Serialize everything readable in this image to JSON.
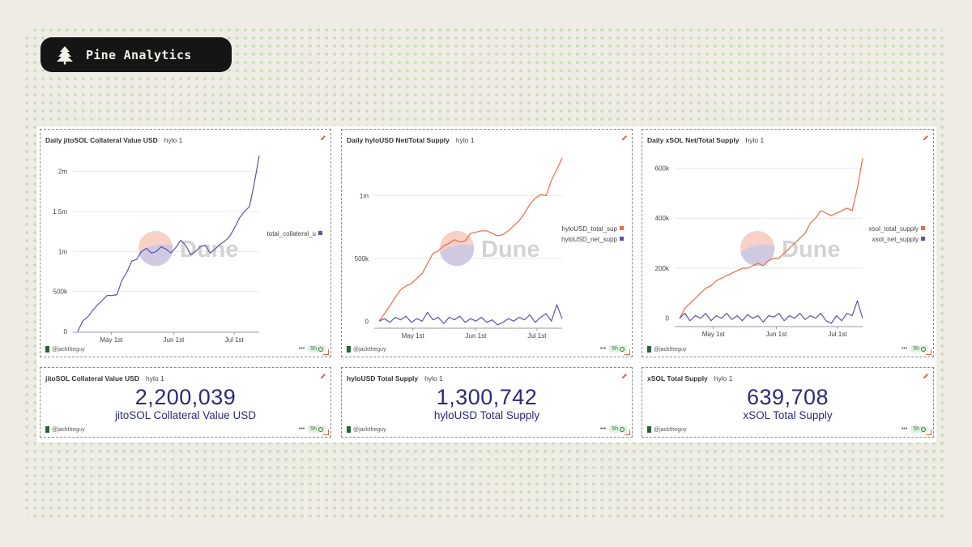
{
  "brand": {
    "name": "Pine Analytics",
    "colors": {
      "orange": "#f06a44",
      "purple": "#5755a8"
    }
  },
  "watermark": "Dune",
  "charts": [
    {
      "title": "Daily jitoSOL Collateral Value USD",
      "subtitle": "hylo 1",
      "user": "@jacktheguy",
      "age": "5h",
      "legend": [
        "total_collateral_u"
      ]
    },
    {
      "title": "Daily hyloUSD Net/Total Supply",
      "subtitle": "hylo 1",
      "user": "@jacktheguy",
      "age": "5h",
      "legend": [
        "hyloUSD_total_sup",
        "hyloUSD_net_supp"
      ]
    },
    {
      "title": "Daily xSOL Net/Total Supply",
      "subtitle": "hylo 1",
      "user": "@jacktheguy",
      "age": "5h",
      "legend": [
        "xsol_total_supply",
        "xsol_net_supply"
      ]
    }
  ],
  "counters": [
    {
      "title": "jitoSOL Collateral Value USD",
      "subtitle": "hylo 1",
      "value": "2,200,039",
      "label": "jitoSOL Collateral Value USD",
      "user": "@jacktheguy",
      "age": "5h"
    },
    {
      "title": "hyloUSD Total Supply",
      "subtitle": "hylo 1",
      "value": "1,300,742",
      "label": "hyloUSD Total Supply",
      "user": "@jacktheguy",
      "age": "5h"
    },
    {
      "title": "xSOL Total Supply",
      "subtitle": "hylo 1",
      "value": "639,708",
      "label": "xSOL Total Supply",
      "user": "@jacktheguy",
      "age": "5h"
    }
  ],
  "chart_data": [
    {
      "type": "line",
      "x_tick_labels": [
        "May 1st",
        "Jun 1st",
        "Jul 1st"
      ],
      "y_tick_labels": [
        "0",
        "500k",
        "1m",
        "1.5m",
        "2m"
      ],
      "y_ticks": [
        0,
        500000,
        1000000,
        1500000,
        2000000
      ],
      "ylim": [
        0,
        2200000
      ],
      "legend_position": "right",
      "series": [
        {
          "name": "total_collateral_u",
          "color": "#5755a8",
          "values": [
            0,
            130000,
            180000,
            260000,
            330000,
            390000,
            450000,
            450000,
            460000,
            640000,
            740000,
            880000,
            900000,
            1000000,
            1040000,
            980000,
            1000000,
            1060000,
            1030000,
            980000,
            1050000,
            1140000,
            1080000,
            960000,
            1000000,
            1060000,
            1080000,
            980000,
            1030000,
            1090000,
            1130000,
            1190000,
            1300000,
            1420000,
            1500000,
            1560000,
            1850000,
            2200000
          ]
        }
      ]
    },
    {
      "type": "line",
      "x_tick_labels": [
        "May 1st",
        "Jun 1st",
        "Jul 1st"
      ],
      "y_tick_labels": [
        "0",
        "500k",
        "1m"
      ],
      "y_ticks": [
        0,
        500000,
        1000000
      ],
      "ylim": [
        -50000,
        1320000
      ],
      "legend_position": "right",
      "series": [
        {
          "name": "hyloUSD_total_sup",
          "color": "#f06a44",
          "values": [
            0,
            60000,
            120000,
            190000,
            250000,
            280000,
            300000,
            340000,
            380000,
            460000,
            540000,
            560000,
            600000,
            620000,
            650000,
            630000,
            640000,
            700000,
            710000,
            720000,
            720000,
            700000,
            680000,
            690000,
            720000,
            760000,
            800000,
            860000,
            930000,
            980000,
            1010000,
            1000000,
            1120000,
            1210000,
            1300000
          ]
        },
        {
          "name": "hyloUSD_net_supp",
          "color": "#5755a8",
          "values": [
            0,
            20000,
            -10000,
            30000,
            10000,
            40000,
            -10000,
            20000,
            0,
            70000,
            10000,
            30000,
            -20000,
            30000,
            10000,
            40000,
            -10000,
            20000,
            0,
            30000,
            -10000,
            10000,
            -30000,
            -10000,
            20000,
            0,
            30000,
            10000,
            50000,
            -10000,
            30000,
            60000,
            0,
            130000,
            20000
          ]
        }
      ]
    },
    {
      "type": "line",
      "x_tick_labels": [
        "May 1st",
        "Jun 1st",
        "Jul 1st"
      ],
      "y_tick_labels": [
        "0",
        "200k",
        "400k",
        "600k"
      ],
      "y_ticks": [
        0,
        200000,
        400000,
        600000
      ],
      "ylim": [
        -30000,
        650000
      ],
      "legend_position": "right",
      "series": [
        {
          "name": "xsol_total_supply",
          "color": "#f06a44",
          "values": [
            0,
            40000,
            60000,
            80000,
            100000,
            120000,
            130000,
            150000,
            160000,
            170000,
            180000,
            190000,
            200000,
            200000,
            210000,
            220000,
            210000,
            230000,
            240000,
            240000,
            260000,
            280000,
            300000,
            320000,
            340000,
            380000,
            400000,
            430000,
            420000,
            410000,
            420000,
            430000,
            440000,
            430000,
            520000,
            639708
          ]
        },
        {
          "name": "xsol_net_supply",
          "color": "#5755a8",
          "values": [
            0,
            20000,
            -10000,
            10000,
            0,
            20000,
            -10000,
            10000,
            0,
            20000,
            -5000,
            10000,
            -10000,
            15000,
            0,
            10000,
            -15000,
            10000,
            5000,
            20000,
            -10000,
            10000,
            0,
            20000,
            -5000,
            10000,
            0,
            20000,
            -10000,
            -20000,
            10000,
            -10000,
            20000,
            10000,
            70000,
            0
          ]
        }
      ]
    }
  ]
}
